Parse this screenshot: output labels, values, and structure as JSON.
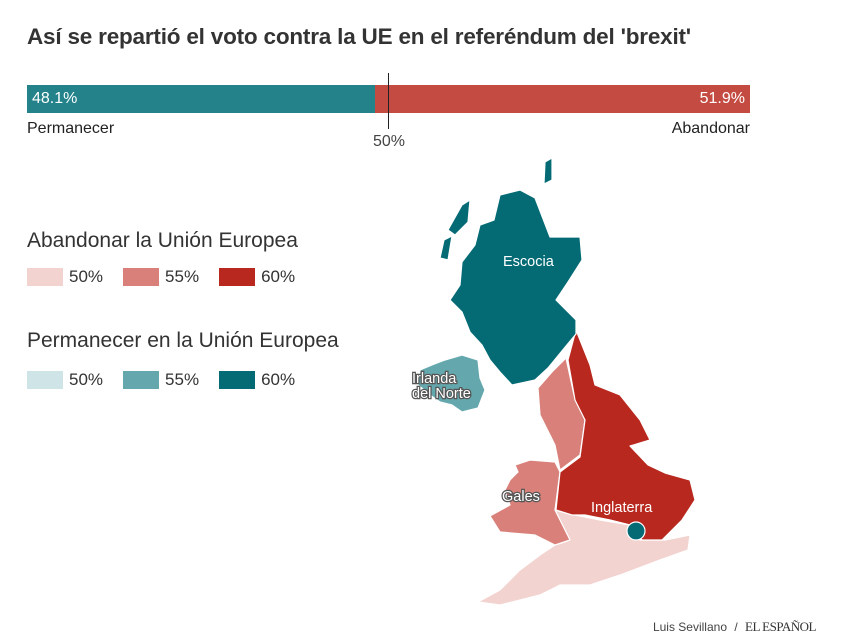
{
  "title": "Así se repartió el voto contra la UE en el referéndum del 'brexit'",
  "result_bar": {
    "remain": {
      "label": "Permanecer",
      "value_label": "48.1%",
      "value": 48.1,
      "color": "#23828a"
    },
    "leave": {
      "label": "Abandonar",
      "value_label": "51.9%",
      "value": 51.9,
      "color": "#c44b41"
    },
    "midpoint_label": "50%"
  },
  "legend": {
    "leave": {
      "title": "Abandonar la Unión Europea",
      "items": [
        {
          "label": "50%",
          "color": "#f2d3d0"
        },
        {
          "label": "55%",
          "color": "#d9807a"
        },
        {
          "label": "60%",
          "color": "#b8281f"
        }
      ]
    },
    "remain": {
      "title": "Permanecer en la Unión Europea",
      "items": [
        {
          "label": "50%",
          "color": "#cfe4e6"
        },
        {
          "label": "55%",
          "color": "#64a8ae"
        },
        {
          "label": "60%",
          "color": "#046b75"
        }
      ]
    }
  },
  "map": {
    "regions": [
      {
        "name": "Escocia",
        "result": "Permanecer",
        "level": "60%"
      },
      {
        "name": "Irlanda del Norte",
        "result": "Permanecer",
        "level": "55%"
      },
      {
        "name": "Gales",
        "result": "Abandonar",
        "level": "55%"
      },
      {
        "name": "Inglaterra",
        "result": "Abandonar",
        "level": "60%"
      }
    ],
    "labels": {
      "scotland": "Escocia",
      "ni_1": "Irlanda",
      "ni_2": "del Norte",
      "wales": "Gales",
      "england": "Inglaterra"
    }
  },
  "credit": {
    "author": "Luis Sevillano",
    "separator": "/",
    "publisher": "EL ESPAÑOL"
  }
}
